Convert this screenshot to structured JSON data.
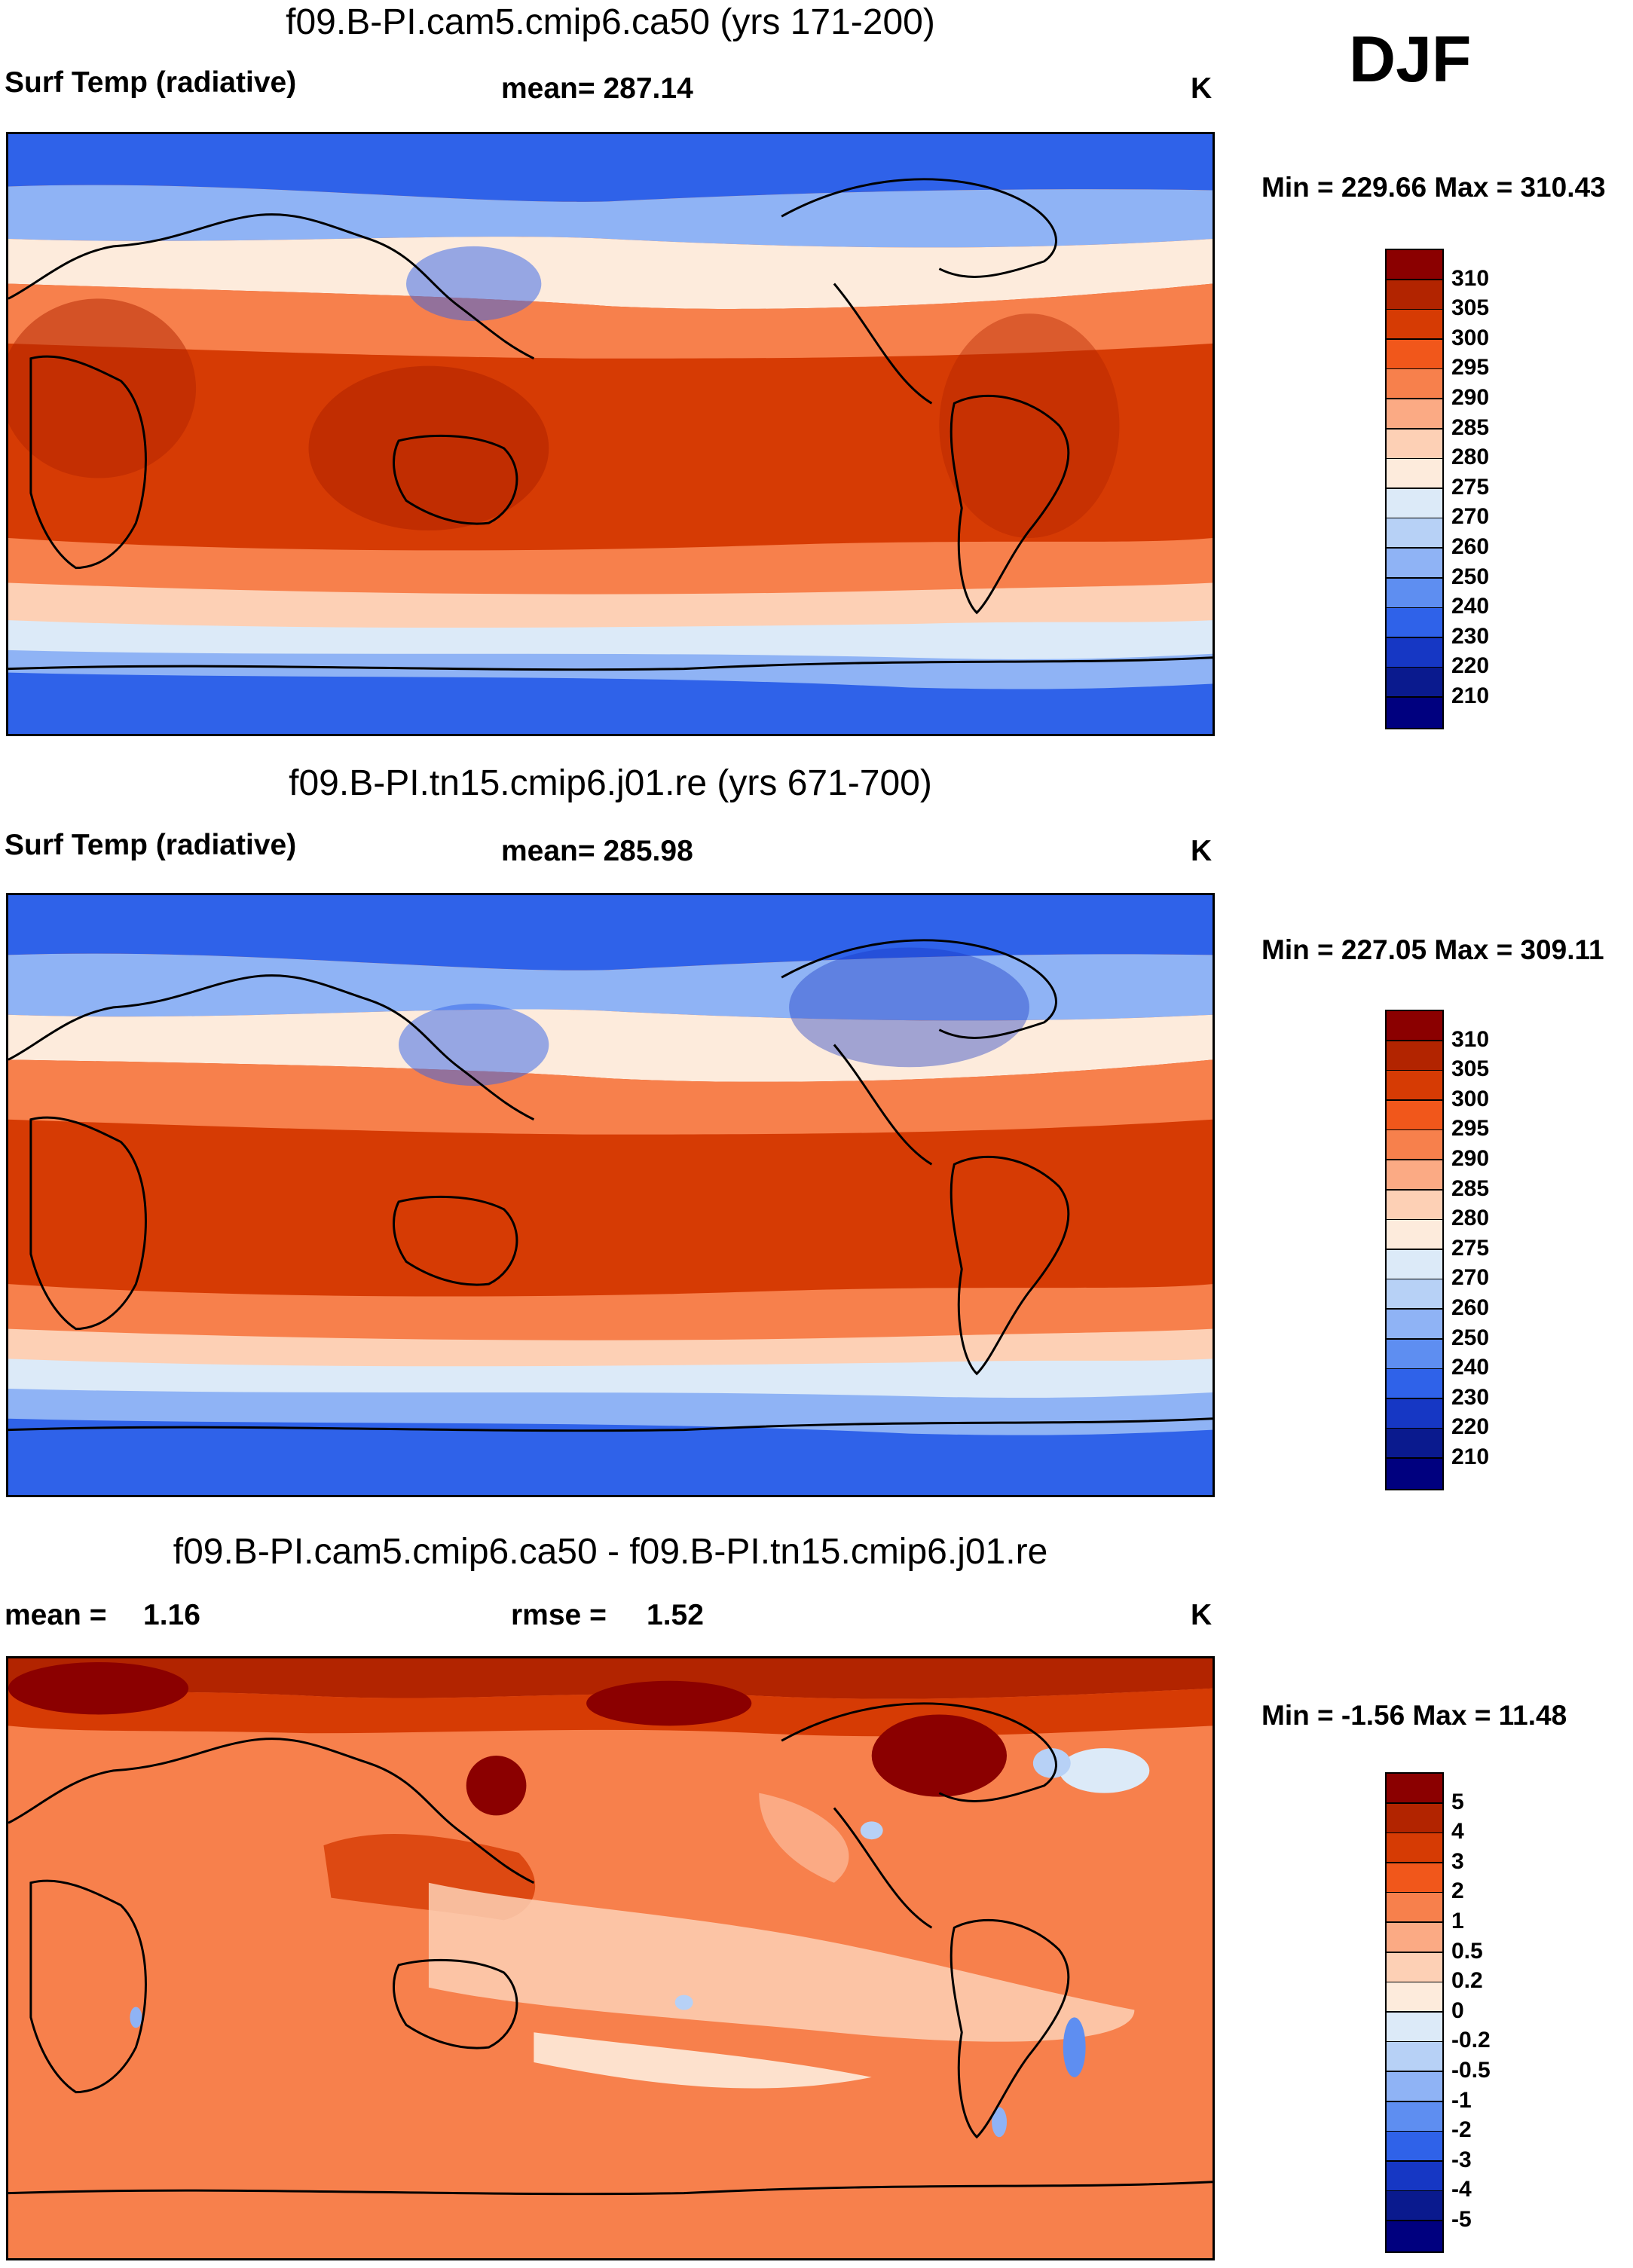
{
  "season": "DJF",
  "panels": [
    {
      "id": "top",
      "title": "f09.B-PI.cam5.cmip6.ca50 (yrs 171-200)",
      "variable": "Surf Temp (radiative)",
      "stat_line": "mean= 287.14",
      "units": "K",
      "minmax": "Min = 229.66 Max = 310.43",
      "colorbar": {
        "labels": [
          "310",
          "305",
          "300",
          "295",
          "290",
          "285",
          "280",
          "275",
          "270",
          "260",
          "250",
          "240",
          "230",
          "220",
          "210"
        ],
        "colors": [
          "#8b0000",
          "#b22400",
          "#d63b04",
          "#f1571b",
          "#f7804c",
          "#fbaa84",
          "#fdd0b5",
          "#fdebdc",
          "#dceaf8",
          "#b7d1f6",
          "#8fb3f5",
          "#5e8ef1",
          "#2f62e9",
          "#1637c4",
          "#0a1a8e",
          "#00007f"
        ]
      }
    },
    {
      "id": "middle",
      "title": "f09.B-PI.tn15.cmip6.j01.re (yrs 671-700)",
      "variable": "Surf Temp (radiative)",
      "stat_line": "mean= 285.98",
      "units": "K",
      "minmax": "Min = 227.05 Max = 309.11",
      "colorbar": {
        "labels": [
          "310",
          "305",
          "300",
          "295",
          "290",
          "285",
          "280",
          "275",
          "270",
          "260",
          "250",
          "240",
          "230",
          "220",
          "210"
        ],
        "colors": [
          "#8b0000",
          "#b22400",
          "#d63b04",
          "#f1571b",
          "#f7804c",
          "#fbaa84",
          "#fdd0b5",
          "#fdebdc",
          "#dceaf8",
          "#b7d1f6",
          "#8fb3f5",
          "#5e8ef1",
          "#2f62e9",
          "#1637c4",
          "#0a1a8e",
          "#00007f"
        ]
      }
    },
    {
      "id": "diff",
      "title": "f09.B-PI.cam5.cmip6.ca50 - f09.B-PI.tn15.cmip6.j01.re",
      "mean_label": "mean =",
      "mean_value": "1.16",
      "rmse_label": "rmse =",
      "rmse_value": "1.52",
      "units": "K",
      "minmax": "Min =  -1.56 Max =  11.48",
      "colorbar": {
        "labels": [
          "5",
          "4",
          "3",
          "2",
          "1",
          "0.5",
          "0.2",
          "0",
          "-0.2",
          "-0.5",
          "-1",
          "-2",
          "-3",
          "-4",
          "-5"
        ],
        "colors": [
          "#8b0000",
          "#b22400",
          "#d63b04",
          "#f1571b",
          "#f7804c",
          "#fbaa84",
          "#fdd0b5",
          "#fdebdc",
          "#dceaf8",
          "#b7d1f6",
          "#8fb3f5",
          "#5e8ef1",
          "#2f62e9",
          "#1637c4",
          "#0a1a8e",
          "#00007f"
        ]
      }
    }
  ]
}
